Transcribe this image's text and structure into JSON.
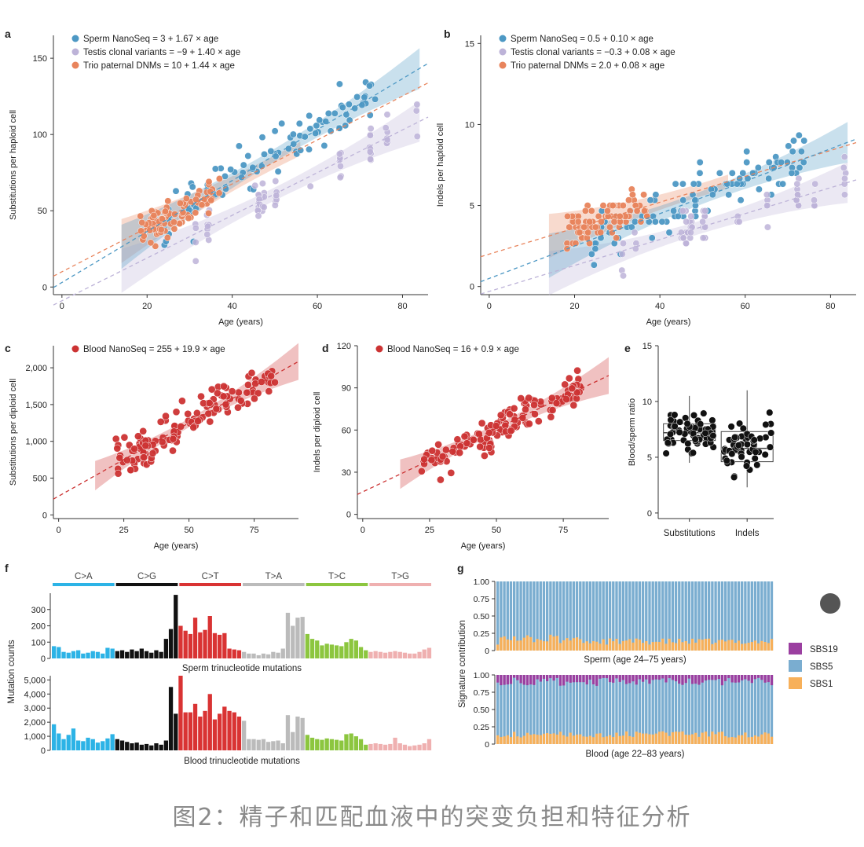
{
  "caption": "图2：精子和匹配血液中的突变负担和特征分析",
  "colors": {
    "sperm": "#4d98c4",
    "testis": "#bdb3d8",
    "trio": "#e8845c",
    "blood": "#cc3333",
    "CA": "#2cb3e6",
    "CG": "#111111",
    "CT": "#d93333",
    "TA": "#bbbbbb",
    "TC": "#8cc63f",
    "TG": "#efb0b0",
    "SBS19": "#9b3fa0",
    "SBS5": "#7aadd0",
    "SBS1": "#f7b05a"
  },
  "chart_data": [
    {
      "id": "a",
      "type": "scatter",
      "panel_label": "a",
      "xlabel": "Age (years)",
      "ylabel": "Substitutions per haploid cell",
      "xlim": [
        -2,
        86
      ],
      "ylim": [
        -5,
        165
      ],
      "xticks": [
        0,
        20,
        40,
        60,
        80
      ],
      "yticks": [
        0,
        50,
        100,
        150
      ],
      "series": [
        {
          "key": "sperm",
          "name": "Sperm NanoSeq = 3 + 1.67 × age",
          "intercept": 3,
          "slope": 1.67,
          "fit_range": [
            14,
            84
          ]
        },
        {
          "key": "testis",
          "name": "Testis clonal variants = −9 + 1.40 × age",
          "intercept": -9,
          "slope": 1.4,
          "fit_range": [
            14,
            84
          ]
        },
        {
          "key": "trio",
          "name": "Trio paternal DNMs = 10 + 1.44 × age",
          "intercept": 10,
          "slope": 1.44,
          "fit_range": [
            14,
            56
          ]
        }
      ]
    },
    {
      "id": "b",
      "type": "scatter",
      "panel_label": "b",
      "xlabel": "Age (years)",
      "ylabel": "Indels per haploid cell",
      "xlim": [
        -2,
        86
      ],
      "ylim": [
        -0.5,
        15.5
      ],
      "xticks": [
        0,
        20,
        40,
        60,
        80
      ],
      "yticks": [
        0,
        5,
        10,
        15
      ],
      "series": [
        {
          "key": "sperm",
          "name": "Sperm NanoSeq = 0.5 + 0.10 × age",
          "intercept": 0.5,
          "slope": 0.1,
          "fit_range": [
            14,
            84
          ]
        },
        {
          "key": "testis",
          "name": "Testis clonal variants = −0.3 + 0.08 × age",
          "intercept": -0.3,
          "slope": 0.08,
          "fit_range": [
            14,
            84
          ]
        },
        {
          "key": "trio",
          "name": "Trio paternal DNMs = 2.0 + 0.08 × age",
          "intercept": 2.0,
          "slope": 0.08,
          "fit_range": [
            14,
            56
          ]
        }
      ]
    },
    {
      "id": "c",
      "type": "scatter",
      "panel_label": "c",
      "xlabel": "Age (years)",
      "ylabel": "Substitutions per diploid cell",
      "xlim": [
        -2,
        92
      ],
      "ylim": [
        -50,
        2300
      ],
      "xticks": [
        0,
        25,
        50,
        75
      ],
      "yticks": [
        0,
        500,
        1000,
        1500,
        2000
      ],
      "ytick_labels": [
        "0",
        "500",
        "1,000",
        "1,500",
        "2,000"
      ],
      "series": [
        {
          "key": "blood",
          "name": "Blood NanoSeq = 255 + 19.9 × age",
          "intercept": 255,
          "slope": 19.9,
          "fit_range": [
            14,
            92
          ]
        }
      ]
    },
    {
      "id": "d",
      "type": "scatter",
      "panel_label": "d",
      "xlabel": "Age (years)",
      "ylabel": "Indels per diploid cell",
      "xlim": [
        -2,
        92
      ],
      "ylim": [
        -3,
        120
      ],
      "xticks": [
        0,
        25,
        50,
        75
      ],
      "yticks": [
        0,
        30,
        60,
        90,
        120
      ],
      "series": [
        {
          "key": "blood",
          "name": "Blood NanoSeq = 16 + 0.9 × age",
          "intercept": 16,
          "slope": 0.9,
          "fit_range": [
            14,
            92
          ]
        }
      ]
    },
    {
      "id": "e",
      "type": "box",
      "panel_label": "e",
      "ylabel": "Blood/sperm ratio",
      "ylim": [
        -0.5,
        15
      ],
      "yticks": [
        0,
        5,
        10,
        15
      ],
      "categories": [
        "Substitutions",
        "Indels"
      ],
      "boxes": [
        {
          "q1": 6.5,
          "median": 7.2,
          "q3": 8.0,
          "min": 4.5,
          "max": 10.5
        },
        {
          "q1": 4.6,
          "median": 5.8,
          "q3": 7.3,
          "min": 2.3,
          "max": 11.0
        }
      ]
    },
    {
      "id": "f",
      "type": "bar",
      "panel_label": "f",
      "ylabel": "Mutation counts",
      "groups": [
        "C>A",
        "C>G",
        "C>T",
        "T>A",
        "T>C",
        "T>G"
      ],
      "group_keys": [
        "CA",
        "CG",
        "CT",
        "TA",
        "TC",
        "TG"
      ],
      "subplots": [
        {
          "title": "Sperm trinucleotide mutations",
          "ylim": [
            0,
            400
          ],
          "yticks": [
            0,
            100,
            200,
            300
          ],
          "ytick_labels": [
            "0",
            "100",
            "200",
            "300"
          ],
          "values": [
            75,
            70,
            40,
            35,
            45,
            50,
            30,
            35,
            45,
            40,
            30,
            65,
            60,
            45,
            50,
            40,
            55,
            45,
            60,
            45,
            35,
            50,
            40,
            120,
            180,
            390,
            200,
            170,
            150,
            250,
            160,
            175,
            260,
            155,
            145,
            155,
            60,
            55,
            50,
            40,
            30,
            30,
            20,
            30,
            25,
            40,
            35,
            60,
            280,
            200,
            250,
            255,
            150,
            120,
            110,
            80,
            90,
            85,
            80,
            75,
            100,
            120,
            110,
            70,
            50,
            40,
            45,
            40,
            35,
            40,
            45,
            40,
            35,
            30,
            30,
            40,
            55,
            65
          ]
        },
        {
          "title": "Blood trinucleotide mutations",
          "ylim": [
            0,
            5300
          ],
          "yticks": [
            0,
            1000,
            2000,
            3000,
            4000,
            5000
          ],
          "ytick_labels": [
            "0",
            "1,000",
            "2,000",
            "3,000",
            "4,000",
            "5,000"
          ],
          "values": [
            1850,
            1200,
            800,
            1100,
            1550,
            700,
            650,
            900,
            800,
            550,
            650,
            850,
            1150,
            800,
            700,
            600,
            500,
            550,
            400,
            450,
            350,
            500,
            400,
            700,
            4500,
            2600,
            5300,
            2700,
            2700,
            3300,
            2400,
            2800,
            4000,
            2200,
            2600,
            3100,
            2800,
            2700,
            2400,
            2100,
            800,
            800,
            750,
            800,
            600,
            650,
            700,
            500,
            2500,
            1300,
            2400,
            2300,
            1100,
            900,
            800,
            750,
            850,
            800,
            750,
            700,
            1150,
            1200,
            1000,
            800,
            400,
            450,
            500,
            450,
            400,
            450,
            900,
            500,
            400,
            300,
            350,
            400,
            500,
            800
          ]
        }
      ]
    },
    {
      "id": "g",
      "type": "stacked_bar",
      "panel_label": "g",
      "ylabel": "Signature contribution",
      "ylim": [
        0,
        1
      ],
      "yticks": [
        0,
        0.25,
        0.5,
        0.75,
        1
      ],
      "ytick_labels": [
        "0",
        "0.25",
        "0.50",
        "0.75",
        "1.00"
      ],
      "legend": [
        "SBS19",
        "SBS5",
        "SBS1"
      ],
      "subplots": [
        {
          "title": "Sperm (age 24–75 years)",
          "n": 84,
          "sbs1_mean": 0.13,
          "sbs19_mean": 0.0
        },
        {
          "title": "Blood (age 22–83 years)",
          "n": 84,
          "sbs1_mean": 0.14,
          "sbs19_mean": 0.1
        }
      ]
    }
  ]
}
